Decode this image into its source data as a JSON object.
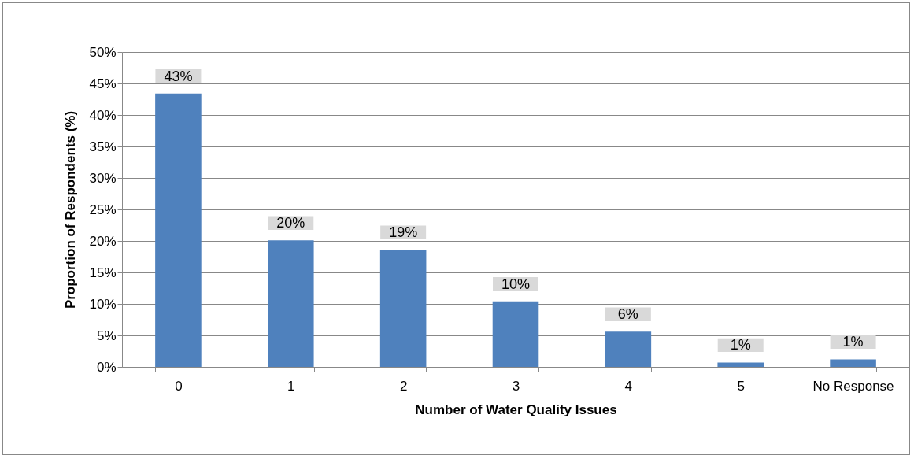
{
  "chart_data": {
    "type": "bar",
    "xlabel": "Number of Water Quality Issues",
    "ylabel": "Proportion of Respondents (%)",
    "categories": [
      "0",
      "1",
      "2",
      "3",
      "4",
      "5",
      "No Response"
    ],
    "values": [
      43.4,
      20.1,
      18.6,
      10.4,
      5.6,
      0.7,
      1.2
    ],
    "value_labels": [
      "43%",
      "20%",
      "19%",
      "10%",
      "6%",
      "1%",
      "1%"
    ],
    "color": "#4f81bd",
    "ylim": [
      0,
      50
    ],
    "yticks": [
      {
        "value": 0,
        "label": "0%"
      },
      {
        "value": 5,
        "label": "5%"
      },
      {
        "value": 10,
        "label": "10%"
      },
      {
        "value": 15,
        "label": "15%"
      },
      {
        "value": 20,
        "label": "20%"
      },
      {
        "value": 25,
        "label": "25%"
      },
      {
        "value": 30,
        "label": "30%"
      },
      {
        "value": 35,
        "label": "35%"
      },
      {
        "value": 40,
        "label": "40%"
      },
      {
        "value": 45,
        "label": "45%"
      },
      {
        "value": 50,
        "label": "50%"
      }
    ],
    "grid": "y"
  }
}
